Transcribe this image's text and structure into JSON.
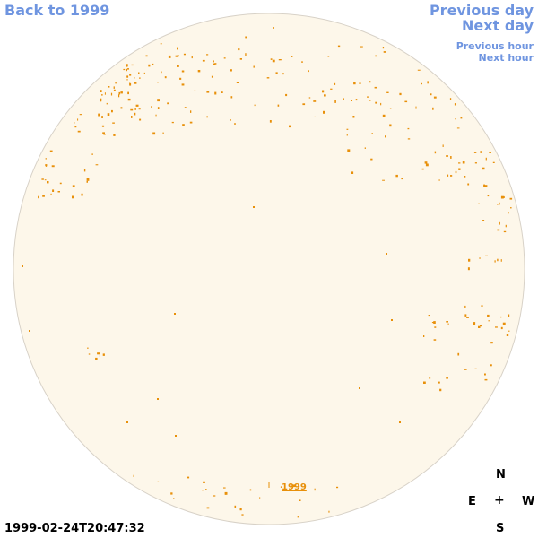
{
  "nav": {
    "back": "Back to 1999",
    "previous_day": "Previous day",
    "next_day": "Next day",
    "previous_hour": "Previous hour",
    "next_hour": "Next hour"
  },
  "timestamp": "1999-02-24T20:47:32",
  "year_link": "1999",
  "compass": {
    "north": "N",
    "east": "E",
    "center": "+",
    "west": "W",
    "south": "S"
  },
  "colors": {
    "disc_fill": "#fdf7ea",
    "disc_edge": "#d8d2c8",
    "feature": "#e8900a",
    "link": "#6f95e0"
  }
}
